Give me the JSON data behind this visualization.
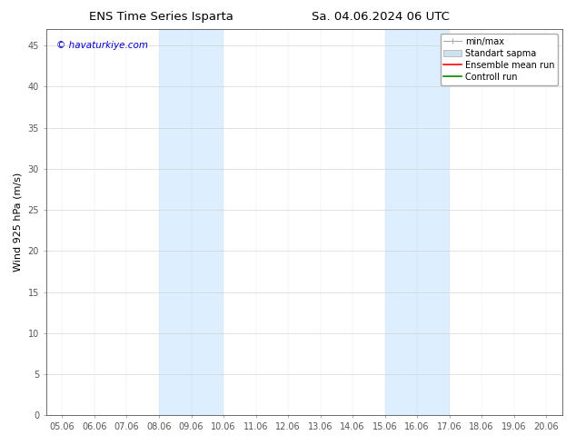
{
  "title_left": "ENS Time Series Isparta",
  "title_right": "Sa. 04.06.2024 06 UTC",
  "ylabel": "Wind 925 hPa (m/s)",
  "watermark": "© havaturkiye.com",
  "watermark_color": "#0000cc",
  "ylim": [
    0,
    47
  ],
  "yticks": [
    0,
    5,
    10,
    15,
    20,
    25,
    30,
    35,
    40,
    45
  ],
  "xtick_labels": [
    "05.06",
    "06.06",
    "07.06",
    "08.06",
    "09.06",
    "10.06",
    "11.06",
    "12.06",
    "13.06",
    "14.06",
    "15.06",
    "16.06",
    "17.06",
    "18.06",
    "19.06",
    "20.06"
  ],
  "xtick_positions": [
    0,
    1,
    2,
    3,
    4,
    5,
    6,
    7,
    8,
    9,
    10,
    11,
    12,
    13,
    14,
    15
  ],
  "band1_start": 3,
  "band1_end": 5,
  "band2_start": 10,
  "band2_end": 12,
  "band_color": "#ddeeff",
  "legend_labels": [
    "min/max",
    "Standart sapma",
    "Ensemble mean run",
    "Controll run"
  ],
  "minmax_color": "#aaaaaa",
  "std_facecolor": "#cce0f0",
  "ens_color": "#ff0000",
  "ctrl_color": "#008800",
  "background_color": "#ffffff",
  "spine_color": "#888888",
  "tick_color": "#555555",
  "title_fontsize": 9.5,
  "label_fontsize": 8,
  "tick_fontsize": 7,
  "legend_fontsize": 7,
  "watermark_fontsize": 7.5
}
